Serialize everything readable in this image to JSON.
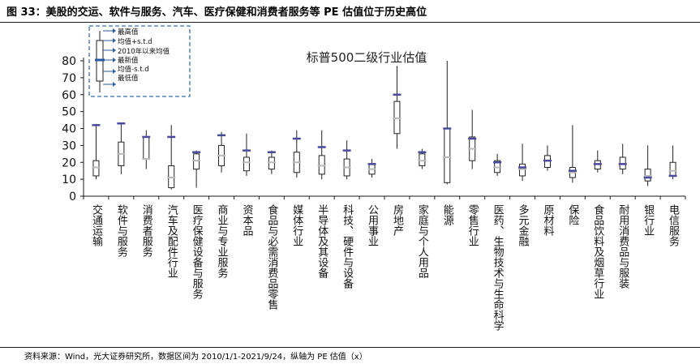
{
  "figure": {
    "title": "图 33：美股的交运、软件与服务、汽车、医疗保健和消费者服务等 PE 估值位于历史高位",
    "source": "资料来源：Wind，光大证券研究所，数据区间为 2010/1/1-2021/9/24，纵轴为 PE 估值（x）"
  },
  "colors": {
    "axis": "#1a1a1a",
    "whisker": "#222222",
    "box_stroke": "#222222",
    "box_fill": "#ffffff",
    "max_marker": "#4a4a9a",
    "latest_marker": "#b8b8b8",
    "min_marker": "#4a4a9a",
    "legend_border": "#3a6fb5",
    "legend_arrow": "#2a5aa0"
  },
  "chart_data": {
    "type": "boxplot",
    "title": "标普500二级行业估值",
    "ylim": [
      0,
      80
    ],
    "yticks": [
      0,
      10,
      20,
      30,
      40,
      50,
      60,
      70,
      80
    ],
    "legend": {
      "placement": "top-left",
      "entries": [
        "最高值",
        "均值+s.t.d",
        "2010年以来均值",
        "最新值",
        "均值-s.t.d",
        "最低值"
      ]
    },
    "categories": [
      "交通运输",
      "软件与服务",
      "消费者服务",
      "汽车及配件行业",
      "医疗保健设备与服务",
      "商业与专业服务",
      "资本品",
      "食品与必需消费品零售",
      "媒体行业",
      "半导体及其设备",
      "科技、硬件与设备",
      "公用事业",
      "房地产",
      "家庭与个人用品",
      "能源",
      "零售行业",
      "医药、生物技术与生命科学",
      "多元金融",
      "原材料",
      "保险",
      "食品饮料及烟草行业",
      "耐用消费品与服装",
      "银行业",
      "电信服务"
    ],
    "series": [
      {
        "max": 42,
        "box_high": 21,
        "mean": 17,
        "box_low": 12,
        "min": 10,
        "latest": 42
      },
      {
        "max": 43,
        "box_high": 32,
        "mean": 25,
        "box_low": 18,
        "min": 13,
        "latest": 43
      },
      {
        "max": 39,
        "box_high": 35,
        "mean": 22,
        "box_low": 22,
        "min": 16,
        "latest": 35
      },
      {
        "max": 42,
        "box_high": 18,
        "mean": 11,
        "box_low": 5,
        "min": 4,
        "latest": 35
      },
      {
        "max": 27,
        "box_high": 25,
        "mean": 21,
        "box_low": 16,
        "min": 5,
        "latest": 26
      },
      {
        "max": 38,
        "box_high": 30,
        "mean": 24,
        "box_low": 18,
        "min": 14,
        "latest": 36
      },
      {
        "max": 37,
        "box_high": 23,
        "mean": 20,
        "box_low": 15,
        "min": 12,
        "latest": 27
      },
      {
        "max": 27,
        "box_high": 23,
        "mean": 20,
        "box_low": 16,
        "min": 13,
        "latest": 26
      },
      {
        "max": 39,
        "box_high": 26,
        "mean": 20,
        "box_low": 14,
        "min": 11,
        "latest": 34
      },
      {
        "max": 39,
        "box_high": 24,
        "mean": 18,
        "box_low": 13,
        "min": 10,
        "latest": 29
      },
      {
        "max": 33,
        "box_high": 22,
        "mean": 17,
        "box_low": 12,
        "min": 10,
        "latest": 27
      },
      {
        "max": 22,
        "box_high": 19,
        "mean": 16,
        "box_low": 13,
        "min": 11,
        "latest": 19
      },
      {
        "max": 77,
        "box_high": 56,
        "mean": 46,
        "box_low": 37,
        "min": 28,
        "latest": 60
      },
      {
        "max": 28,
        "box_high": 25,
        "mean": 21,
        "box_low": 18,
        "min": 16,
        "latest": 26
      },
      {
        "max": 80,
        "box_high": 40,
        "mean": 23,
        "box_low": 8,
        "min": 7,
        "latest": 40
      },
      {
        "max": 51,
        "box_high": 35,
        "mean": 28,
        "box_low": 21,
        "min": 16,
        "latest": 34
      },
      {
        "max": 25,
        "box_high": 21,
        "mean": 17,
        "box_low": 14,
        "min": 12,
        "latest": 20
      },
      {
        "max": 31,
        "box_high": 19,
        "mean": 16,
        "box_low": 12,
        "min": 9,
        "latest": 17
      },
      {
        "max": 30,
        "box_high": 24,
        "mean": 21,
        "box_low": 17,
        "min": 15,
        "latest": 21
      },
      {
        "max": 42,
        "box_high": 17,
        "mean": 14,
        "box_low": 11,
        "min": 8,
        "latest": 15
      },
      {
        "max": 27,
        "box_high": 21,
        "mean": 19,
        "box_low": 16,
        "min": 14,
        "latest": 19
      },
      {
        "max": 31,
        "box_high": 23,
        "mean": 19,
        "box_low": 16,
        "min": 13,
        "latest": 19
      },
      {
        "max": 30,
        "box_high": 16,
        "mean": 12,
        "box_low": 9,
        "min": 6,
        "latest": 11
      },
      {
        "max": 30,
        "box_high": 20,
        "mean": 15,
        "box_low": 12,
        "min": 10,
        "latest": 12
      }
    ]
  }
}
